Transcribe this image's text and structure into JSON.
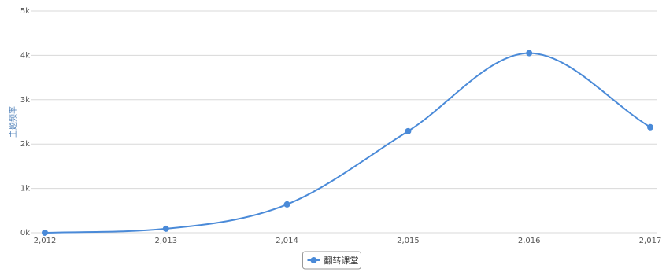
{
  "chart_data": {
    "type": "line",
    "title": "",
    "xlabel": "",
    "ylabel": "主题频率",
    "x": [
      2012,
      2013,
      2014,
      2015,
      2016,
      2017
    ],
    "x_tick_labels": [
      "2,012",
      "2,013",
      "2,014",
      "2,015",
      "2,016",
      "2,017"
    ],
    "series": [
      {
        "name": "翻转课堂",
        "values": [
          0,
          90,
          640,
          2290,
          4050,
          2380
        ]
      }
    ],
    "ylim": [
      0,
      5000
    ],
    "y_ticks": [
      0,
      1000,
      2000,
      3000,
      4000,
      5000
    ],
    "y_tick_labels": [
      "0k",
      "1k",
      "2k",
      "3k",
      "4k",
      "5k"
    ],
    "grid": true,
    "smooth": true,
    "legend_position": "bottom-center",
    "colors": {
      "series": "#4a8ad8",
      "grid": "#d8d8d8"
    }
  }
}
